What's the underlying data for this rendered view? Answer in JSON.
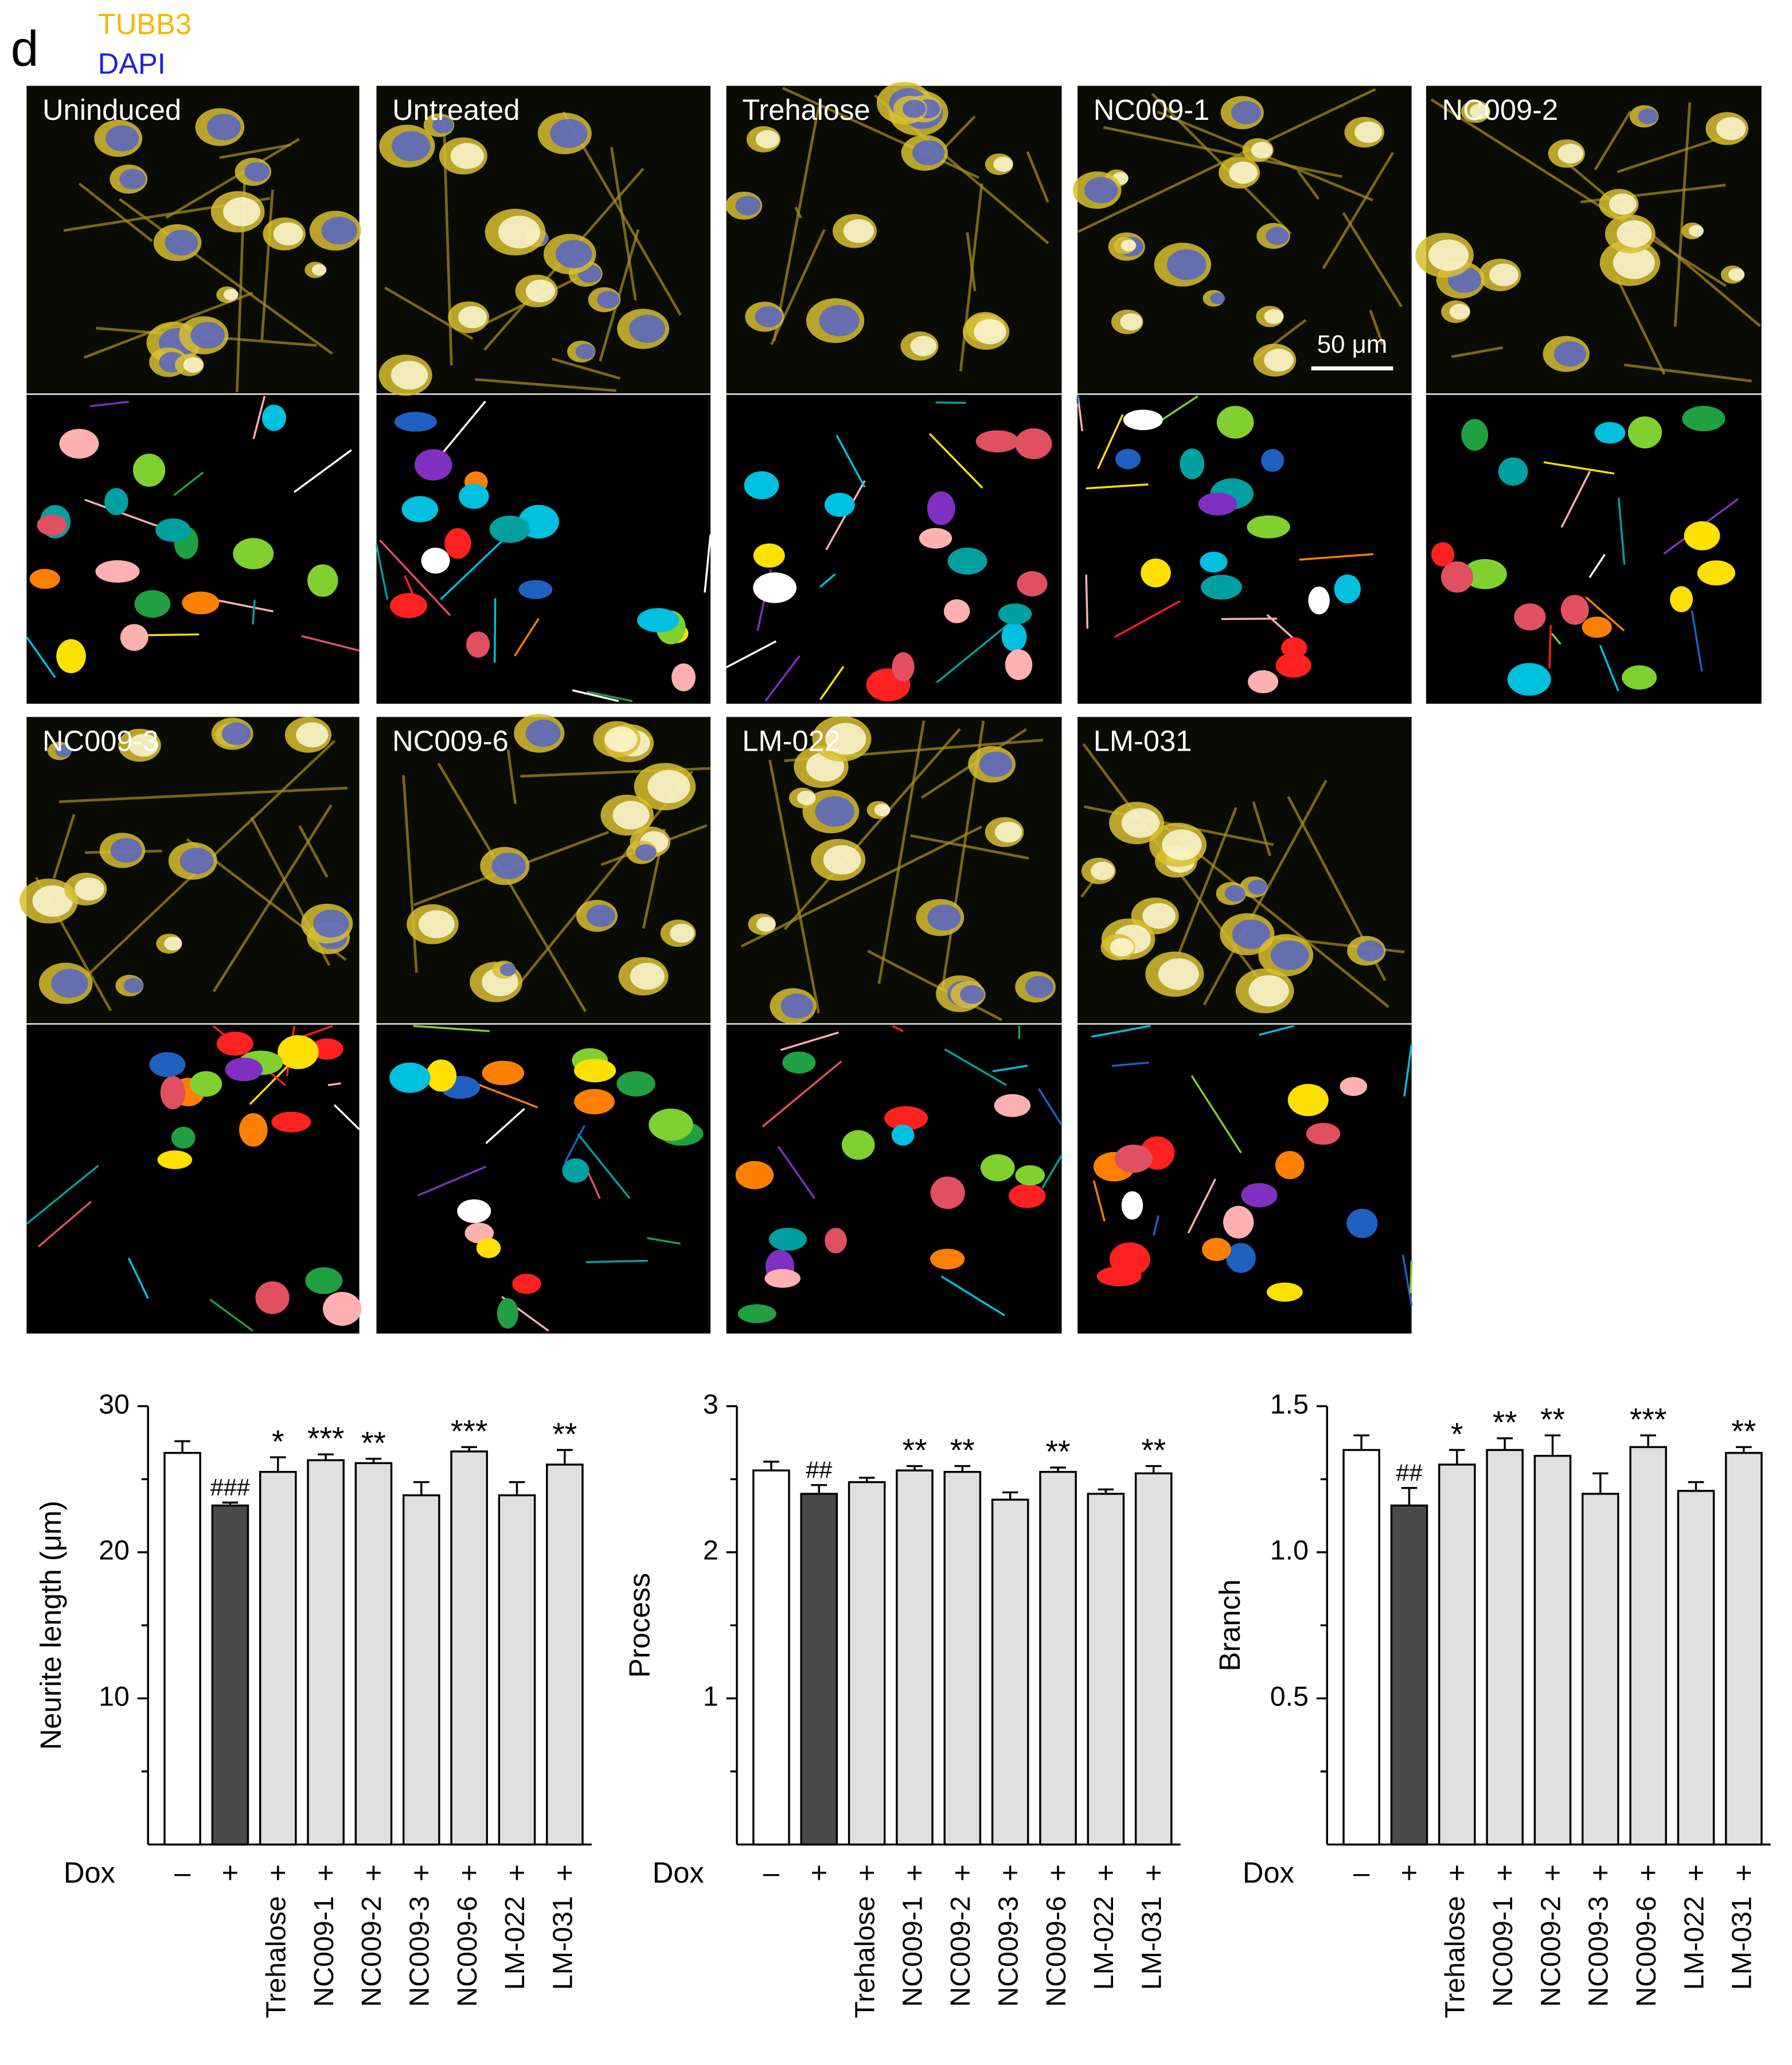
{
  "panel": {
    "letter": "d",
    "legend": [
      "TUBB3",
      "DAPI"
    ],
    "scale_bar": "50 μm",
    "images": [
      "Uninduced",
      "Untreated",
      "Trehalose",
      "NC009-1",
      "NC009-2",
      "NC009-3",
      "NC009-6",
      "LM-022",
      "LM-031"
    ]
  },
  "chart_data": [
    {
      "type": "bar",
      "y_label": "Neurite length (μm)",
      "dox_label": "Dox",
      "dox": [
        "–",
        "+",
        "+",
        "+",
        "+",
        "+",
        "+",
        "+",
        "+"
      ],
      "categories": [
        null,
        null,
        "Trehalose",
        "NC009-1",
        "NC009-2",
        "NC009-3",
        "NC009-6",
        "LM-022",
        "LM-031"
      ],
      "values": [
        26.8,
        23.2,
        25.5,
        26.3,
        26.1,
        23.9,
        26.9,
        23.9,
        26.0
      ],
      "errors": [
        0.8,
        0.2,
        1.0,
        0.4,
        0.3,
        0.9,
        0.3,
        0.9,
        1.0
      ],
      "annotations": [
        null,
        "###",
        "*",
        "***",
        "**",
        null,
        "***",
        null,
        "**"
      ],
      "colors": [
        "#ffffff",
        "#4a4a4a",
        "#e0e0e0",
        "#e0e0e0",
        "#e0e0e0",
        "#e0e0e0",
        "#e0e0e0",
        "#e0e0e0",
        "#e0e0e0"
      ],
      "ylim": [
        0,
        30
      ],
      "yticks": [
        10,
        20,
        30
      ],
      "yminor_ticks": [
        5,
        15,
        25
      ]
    },
    {
      "type": "bar",
      "y_label": "Process",
      "dox_label": "Dox",
      "dox": [
        "–",
        "+",
        "+",
        "+",
        "+",
        "+",
        "+",
        "+",
        "+"
      ],
      "categories": [
        null,
        null,
        "Trehalose",
        "NC009-1",
        "NC009-2",
        "NC009-3",
        "NC009-6",
        "LM-022",
        "LM-031"
      ],
      "values": [
        2.56,
        2.4,
        2.48,
        2.56,
        2.55,
        2.36,
        2.55,
        2.4,
        2.54
      ],
      "errors": [
        0.06,
        0.06,
        0.03,
        0.03,
        0.04,
        0.05,
        0.03,
        0.03,
        0.05
      ],
      "annotations": [
        null,
        "##",
        null,
        "**",
        "**",
        null,
        "**",
        null,
        "**"
      ],
      "colors": [
        "#ffffff",
        "#4a4a4a",
        "#e0e0e0",
        "#e0e0e0",
        "#e0e0e0",
        "#e0e0e0",
        "#e0e0e0",
        "#e0e0e0",
        "#e0e0e0"
      ],
      "ylim": [
        0,
        3
      ],
      "yticks": [
        1,
        2,
        3
      ],
      "yminor_ticks": [
        0.5,
        1.5,
        2.5
      ]
    },
    {
      "type": "bar",
      "y_label": "Branch",
      "dox_label": "Dox",
      "dox": [
        "–",
        "+",
        "+",
        "+",
        "+",
        "+",
        "+",
        "+",
        "+"
      ],
      "categories": [
        null,
        null,
        "Trehalose",
        "NC009-1",
        "NC009-2",
        "NC009-3",
        "NC009-6",
        "LM-022",
        "LM-031"
      ],
      "values": [
        1.35,
        1.16,
        1.3,
        1.35,
        1.33,
        1.2,
        1.36,
        1.21,
        1.34
      ],
      "errors": [
        0.05,
        0.06,
        0.05,
        0.04,
        0.07,
        0.07,
        0.04,
        0.03,
        0.02
      ],
      "annotations": [
        null,
        "##",
        "*",
        "**",
        "**",
        null,
        "***",
        null,
        "**"
      ],
      "colors": [
        "#ffffff",
        "#4a4a4a",
        "#e0e0e0",
        "#e0e0e0",
        "#e0e0e0",
        "#e0e0e0",
        "#e0e0e0",
        "#e0e0e0",
        "#e0e0e0"
      ],
      "ylim": [
        0,
        1.5
      ],
      "yticks": [
        0.5,
        {
          "value": 1,
          "label": "1.0"
        },
        {
          "value": 1.5,
          "label": "1.5"
        }
      ],
      "yminor_ticks": [
        0.25,
        0.75,
        1.25
      ]
    }
  ]
}
